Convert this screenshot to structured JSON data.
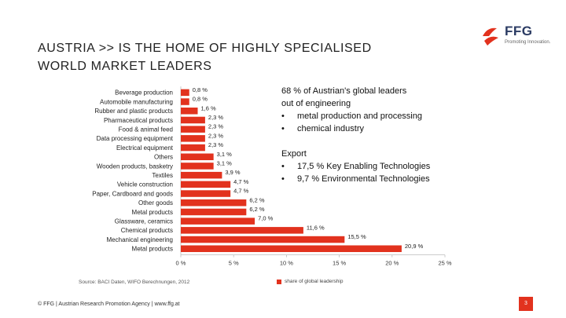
{
  "title_line1": "AUSTRIA >> IS THE HOME OF HIGHLY SPECIALISED",
  "title_line2": "WORLD MARKET LEADERS",
  "logo": {
    "text": "FFG",
    "subtitle": "Promoting Innovation.",
    "color_red": "#e2321e",
    "color_navy": "#2b3b63"
  },
  "info": {
    "engineering_head1": "68 % of Austrian's global leaders",
    "engineering_head2": "out of engineering",
    "engineering_items": [
      "metal production and processing",
      "chemical industry"
    ],
    "export_head": "Export",
    "export_items": [
      "17,5 % Key Enabling Technologies",
      "9,7 % Environmental Technologies"
    ]
  },
  "source": "Source: BACI Daten, WIFO Berechnungen, 2012",
  "footer": "© FFG | Austrian Research Promotion Agency | www.ffg.at",
  "page_number": "3",
  "chart_data": {
    "type": "bar",
    "orientation": "horizontal",
    "bar_color": "#e2321e",
    "categories": [
      "Beverage production",
      "Automobile manufacturing",
      "Rubber and plastic products",
      "Pharmaceutical products",
      "Food & animal feed",
      "Data processing equipment",
      "Electrical equipment",
      "Others",
      "Wooden products, basketry",
      "Textiles",
      "Vehicle construction",
      "Paper, Cardboard and goods",
      "Other goods",
      "Metal products",
      "Glassware, ceramics",
      "Chemical products",
      "Mechanical engineering",
      "Metal products"
    ],
    "values": [
      0.8,
      0.8,
      1.6,
      2.3,
      2.3,
      2.3,
      2.3,
      3.1,
      3.1,
      3.9,
      4.7,
      4.7,
      6.2,
      6.2,
      7.0,
      11.6,
      15.5,
      20.9
    ],
    "value_labels": [
      "0,8 %",
      "0,8 %",
      "1,6 %",
      "2,3 %",
      "2,3 %",
      "2,3 %",
      "2,3 %",
      "3,1 %",
      "3,1 %",
      "3,9 %",
      "4,7 %",
      "4,7 %",
      "6,2 %",
      "6,2 %",
      "7,0 %",
      "11,6 %",
      "15,5 %",
      "20,9 %"
    ],
    "xlim": [
      0,
      25
    ],
    "x_ticks": [
      0,
      5,
      10,
      15,
      20,
      25
    ],
    "x_tick_labels": [
      "0 %",
      "5 %",
      "10 %",
      "15 %",
      "20 %",
      "25 %"
    ],
    "legend": [
      {
        "label": "share of global leadership",
        "color": "#e2321e"
      }
    ],
    "legend_position": "bottom"
  }
}
